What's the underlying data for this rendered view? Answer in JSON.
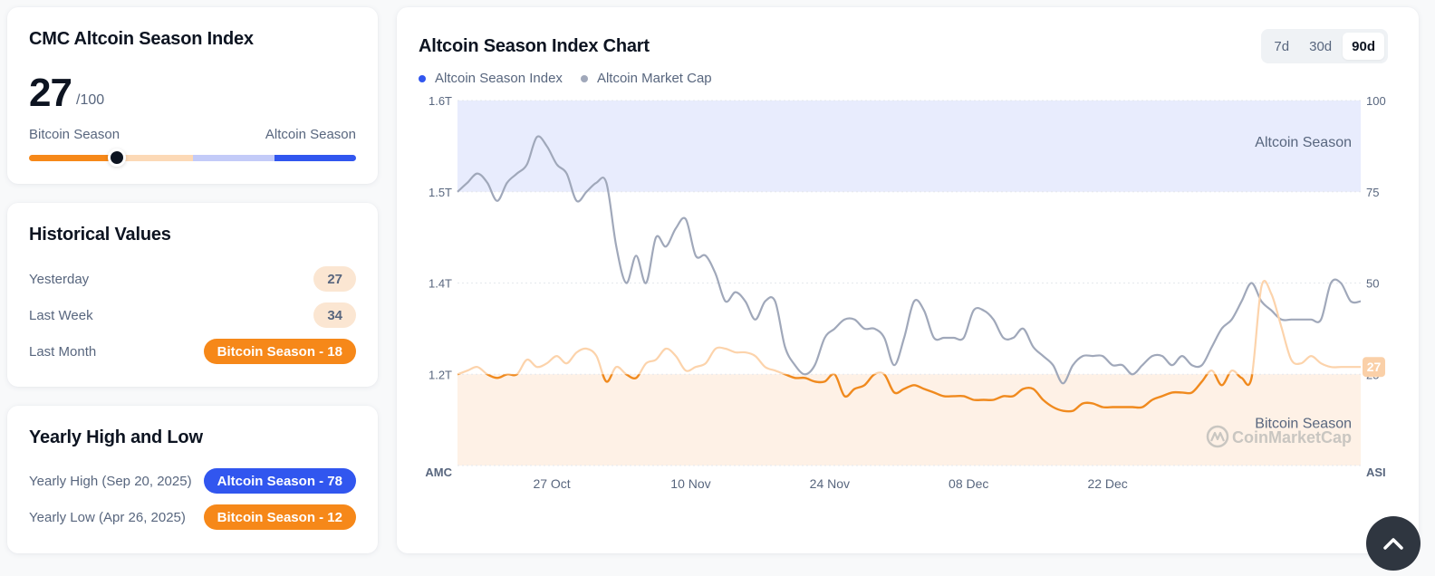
{
  "index_card": {
    "title": "CMC Altcoin Season Index",
    "value": "27",
    "max": "/100",
    "value_number": 27,
    "scale_left_label": "Bitcoin Season",
    "scale_right_label": "Altcoin Season",
    "scale_segments": [
      {
        "name": "bitcoin-season",
        "from": 0,
        "to": 25,
        "color": "#f68819"
      },
      {
        "name": "bitcoin-lean",
        "from": 25,
        "to": 50,
        "color": "#fcd9b6"
      },
      {
        "name": "altcoin-lean",
        "from": 50,
        "to": 75,
        "color": "#c3cbf8"
      },
      {
        "name": "altcoin-season",
        "from": 75,
        "to": 100,
        "color": "#3156ef"
      }
    ]
  },
  "historical": {
    "title": "Historical Values",
    "rows": [
      {
        "label": "Yesterday",
        "value": "27",
        "style": "neutral"
      },
      {
        "label": "Last Week",
        "value": "34",
        "style": "neutral"
      },
      {
        "label": "Last Month",
        "value": "Bitcoin Season - 18",
        "style": "orange"
      }
    ]
  },
  "yearly": {
    "title": "Yearly High and Low",
    "rows": [
      {
        "label": "Yearly High",
        "date": "(Sep 20, 2025)",
        "value": "Altcoin Season - 78",
        "style": "blue"
      },
      {
        "label": "Yearly Low",
        "date": "(Apr 26, 2025)",
        "value": "Bitcoin Season - 12",
        "style": "orange"
      }
    ]
  },
  "chart_card": {
    "title": "Altcoin Season Index Chart",
    "ranges": [
      {
        "label": "7d",
        "active": false
      },
      {
        "label": "30d",
        "active": false
      },
      {
        "label": "90d",
        "active": true
      }
    ],
    "watermark": "CoinMarketCap",
    "current_badge": "27"
  },
  "colors": {
    "asi_dot": "#3156ef",
    "cap_line": "#a0a8ba",
    "asi_strong": "#f08a1e",
    "asi_light": "#fcd3ab",
    "altcoin_zone": "#e8ecfd",
    "bitcoin_zone": "#fef1e6",
    "badge": "#fad0a8"
  },
  "chart_data": {
    "type": "line",
    "title": "Altcoin Season Index Chart",
    "legend": [
      "Altcoin Season Index",
      "Altcoin Market Cap"
    ],
    "legend_position": "top-left",
    "left_axis": {
      "label": "AMC",
      "ticks": [
        "1.6T",
        "1.5T",
        "1.4T",
        "1.2T"
      ],
      "tick_levels": [
        100,
        75,
        50,
        25
      ]
    },
    "right_axis": {
      "label": "ASI",
      "ticks": [
        "100",
        "75",
        "50",
        "25"
      ],
      "ylim": [
        0,
        100
      ]
    },
    "x_ticks": [
      "27 Oct",
      "10 Nov",
      "24 Nov",
      "08 Dec",
      "22 Dec"
    ],
    "x_tick_index": [
      9.5,
      23.5,
      37.5,
      51.5,
      65.5
    ],
    "zones": [
      {
        "label": "Altcoin Season",
        "from": 75,
        "to": 100
      },
      {
        "label": "Bitcoin Season",
        "from": 0,
        "to": 25
      }
    ],
    "grid": true,
    "series": [
      {
        "name": "Altcoin Season Index",
        "axis": "right",
        "values": [
          25,
          26,
          27,
          25,
          24,
          25,
          25,
          29,
          27,
          28,
          30,
          28,
          31,
          32,
          30,
          23,
          27,
          25,
          24,
          28,
          29,
          32,
          30,
          26,
          27,
          28,
          32,
          32,
          31,
          31,
          30,
          27,
          26,
          25,
          24,
          24,
          23,
          23,
          25,
          19,
          21,
          22,
          25,
          25,
          20,
          21,
          22,
          21,
          20,
          19,
          19,
          19,
          18,
          18,
          18,
          19,
          19,
          21,
          21,
          18,
          16,
          15,
          15,
          17,
          17,
          16,
          16,
          16,
          16,
          16,
          18,
          19,
          20,
          20,
          20,
          23,
          26,
          22,
          26,
          24,
          24,
          49,
          47,
          38,
          29,
          28,
          30,
          28,
          27,
          27,
          27,
          27
        ]
      },
      {
        "name": "Altcoin Market Cap",
        "axis": "left",
        "unit": "T",
        "values": [
          1.5,
          1.51,
          1.52,
          1.51,
          1.49,
          1.51,
          1.52,
          1.53,
          1.56,
          1.55,
          1.53,
          1.52,
          1.49,
          1.5,
          1.51,
          1.51,
          1.44,
          1.4,
          1.43,
          1.4,
          1.45,
          1.44,
          1.46,
          1.47,
          1.43,
          1.43,
          1.41,
          1.38,
          1.39,
          1.38,
          1.36,
          1.38,
          1.38,
          1.33,
          1.31,
          1.3,
          1.31,
          1.34,
          1.35,
          1.36,
          1.36,
          1.35,
          1.35,
          1.34,
          1.31,
          1.34,
          1.38,
          1.37,
          1.34,
          1.34,
          1.34,
          1.34,
          1.37,
          1.37,
          1.36,
          1.34,
          1.34,
          1.35,
          1.33,
          1.32,
          1.31,
          1.29,
          1.31,
          1.32,
          1.32,
          1.32,
          1.31,
          1.31,
          1.3,
          1.31,
          1.32,
          1.32,
          1.31,
          1.32,
          1.31,
          1.31,
          1.33,
          1.35,
          1.36,
          1.38,
          1.4,
          1.38,
          1.37,
          1.36,
          1.36,
          1.36,
          1.36,
          1.36,
          1.4,
          1.4,
          1.38,
          1.38
        ]
      }
    ]
  },
  "scroll_top": {
    "icon": "chevron-up-icon"
  }
}
